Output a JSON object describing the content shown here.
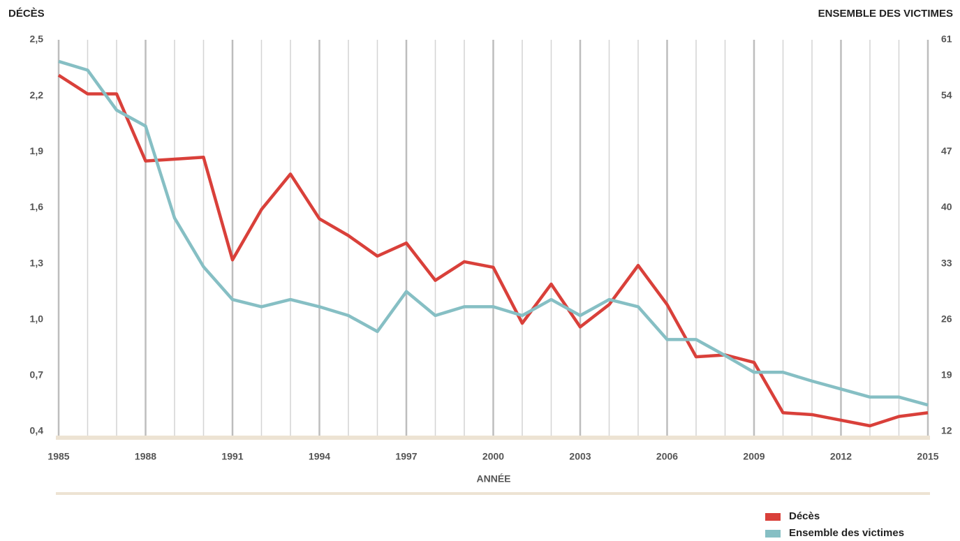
{
  "chart_data": {
    "type": "line",
    "y_axis_title": "DÉCÈS",
    "y2_axis_title": "ENSEMBLE DES VICTIMES",
    "x_axis_title": "ANNÉE",
    "x": [
      1985,
      1986,
      1987,
      1988,
      1989,
      1990,
      1991,
      1992,
      1993,
      1994,
      1995,
      1996,
      1997,
      1998,
      1999,
      2000,
      2001,
      2002,
      2003,
      2004,
      2005,
      2006,
      2007,
      2008,
      2009,
      2010,
      2011,
      2012,
      2013,
      2014,
      2015
    ],
    "xlim": [
      1985,
      2015
    ],
    "xticks": [
      1985,
      1988,
      1991,
      1994,
      1997,
      2000,
      2003,
      2006,
      2009,
      2012,
      2015
    ],
    "ylim": [
      0.4,
      2.5
    ],
    "yticks": [
      {
        "value": 0.4,
        "label": "0,4"
      },
      {
        "value": 0.7,
        "label": "0,7"
      },
      {
        "value": 1.0,
        "label": "1,0"
      },
      {
        "value": 1.3,
        "label": "1,3"
      },
      {
        "value": 1.6,
        "label": "1,6"
      },
      {
        "value": 1.9,
        "label": "1,9"
      },
      {
        "value": 2.2,
        "label": "2,2"
      },
      {
        "value": 2.5,
        "label": "2,5"
      }
    ],
    "y2lim": [
      12,
      61
    ],
    "y2ticks": [
      12,
      19,
      26,
      33,
      40,
      47,
      54,
      61
    ],
    "grid": true,
    "legend": "bottom-right",
    "series": [
      {
        "name": "Décès",
        "color": "#d9403a",
        "axis": "y",
        "values": [
          2.31,
          2.21,
          2.21,
          1.85,
          1.86,
          1.87,
          1.32,
          1.59,
          1.78,
          1.54,
          1.45,
          1.34,
          1.41,
          1.21,
          1.31,
          1.28,
          0.98,
          1.19,
          0.96,
          1.08,
          1.29,
          1.08,
          0.8,
          0.81,
          0.77,
          0.5,
          0.49,
          0.46,
          0.43,
          0.48,
          0.5
        ]
      },
      {
        "name": "Ensemble des victimes",
        "color": "#86bfc4",
        "axis": "y2",
        "values": [
          58.3,
          57.2,
          52.2,
          50.2,
          38.7,
          32.6,
          28.5,
          27.6,
          28.5,
          27.6,
          26.5,
          24.5,
          29.5,
          26.5,
          27.6,
          27.6,
          26.5,
          28.5,
          26.5,
          28.5,
          27.6,
          23.5,
          23.5,
          21.5,
          19.4,
          19.4,
          18.3,
          17.3,
          16.3,
          16.3,
          15.3
        ]
      }
    ]
  }
}
